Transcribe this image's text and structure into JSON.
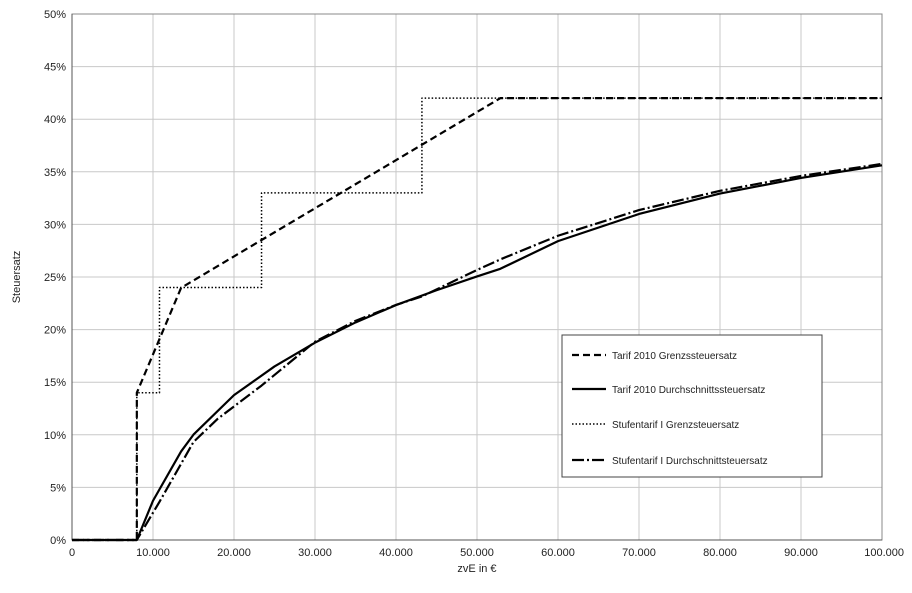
{
  "chart_data": {
    "type": "line",
    "xlabel": "zvE in €",
    "ylabel": "Steuersatz",
    "xlim": [
      0,
      100000
    ],
    "ylim": [
      0,
      0.5
    ],
    "grid": true,
    "legend_position": "right",
    "x_ticks": [
      0,
      10000,
      20000,
      30000,
      40000,
      50000,
      60000,
      70000,
      80000,
      90000,
      100000
    ],
    "x_tick_labels": [
      "0",
      "10.000",
      "20.000",
      "30.000",
      "40.000",
      "50.000",
      "60.000",
      "70.000",
      "80.000",
      "90.000",
      "100.000"
    ],
    "y_ticks": [
      0,
      0.05,
      0.1,
      0.15,
      0.2,
      0.25,
      0.3,
      0.35,
      0.4,
      0.45,
      0.5
    ],
    "y_tick_labels": [
      "0%",
      "5%",
      "10%",
      "15%",
      "20%",
      "25%",
      "30%",
      "35%",
      "40%",
      "45%",
      "50%"
    ],
    "series": [
      {
        "name": "Tarif 2010 Grenzssteuersatz",
        "style": "dashed",
        "x": [
          0,
          8004,
          8004,
          13469,
          52881,
          100000
        ],
        "y": [
          0,
          0,
          0.14,
          0.2397,
          0.42,
          0.42
        ]
      },
      {
        "name": "Tarif 2010 Durchschnittssteuersatz",
        "style": "solid",
        "x": [
          0,
          8004,
          10000,
          13469,
          15000,
          20000,
          25000,
          30000,
          35000,
          40000,
          45000,
          50000,
          52881,
          60000,
          70000,
          80000,
          90000,
          100000
        ],
        "y": [
          0,
          0,
          0.0373,
          0.0842,
          0.1002,
          0.1377,
          0.165,
          0.1876,
          0.2068,
          0.2233,
          0.2374,
          0.2505,
          0.2578,
          0.2841,
          0.3099,
          0.3293,
          0.3442,
          0.3562
        ]
      },
      {
        "name": "Stufentarif I Grenzsteuersatz",
        "style": "dotted",
        "x": [
          0,
          8000,
          8000,
          10800,
          10800,
          23400,
          23400,
          43200,
          43200,
          100000
        ],
        "y": [
          0,
          0,
          0.14,
          0.14,
          0.24,
          0.24,
          0.33,
          0.33,
          0.42,
          0.42
        ]
      },
      {
        "name": "Stufentarif I Durchschnittsteuersatz",
        "style": "dashdot",
        "x": [
          0,
          8000,
          10800,
          15000,
          18000,
          23400,
          30000,
          35000,
          40000,
          43200,
          50000,
          53000,
          60000,
          70000,
          80000,
          90000,
          100000
        ],
        "y": [
          0,
          0,
          0.0363,
          0.0932,
          0.1153,
          0.1468,
          0.1885,
          0.2083,
          0.2235,
          0.2315,
          0.2567,
          0.2671,
          0.2892,
          0.3136,
          0.3319,
          0.3461,
          0.3575
        ]
      }
    ]
  }
}
